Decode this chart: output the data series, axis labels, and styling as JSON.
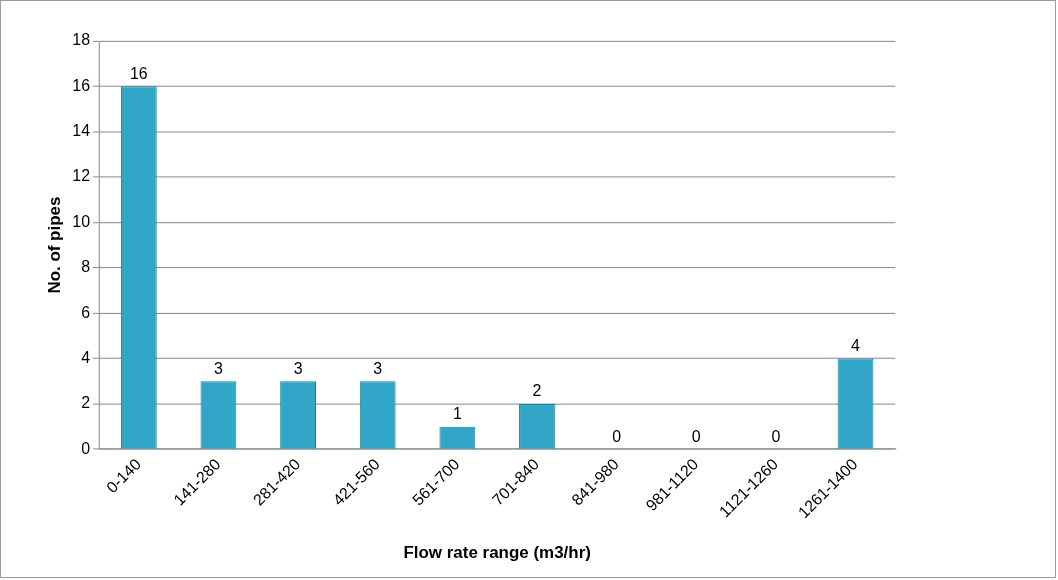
{
  "chart_data": {
    "type": "bar",
    "xlabel": "Flow rate range (m3/hr)",
    "ylabel": "No. of pipes",
    "categories": [
      "0-140",
      "141-280",
      "281-420",
      "421-560",
      "561-700",
      "701-840",
      "841-980",
      "981-1120",
      "1121-1260",
      "1261-1400"
    ],
    "values": [
      16,
      3,
      3,
      3,
      1,
      2,
      0,
      0,
      0,
      4
    ],
    "color": "#31a6c6",
    "ylim": [
      0,
      18
    ],
    "yticks": [
      0,
      2,
      4,
      6,
      8,
      10,
      12,
      14,
      16,
      18
    ],
    "grid": "y",
    "legend": false,
    "data_labels": true
  }
}
